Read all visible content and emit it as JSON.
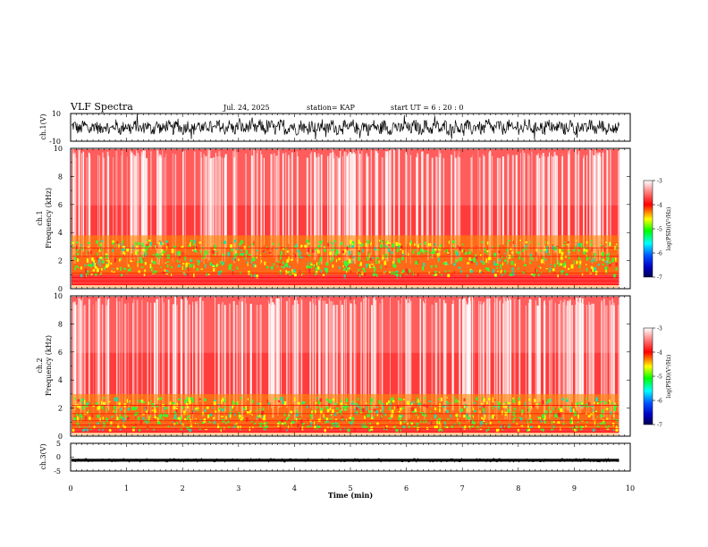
{
  "header": {
    "title": "VLF Spectra",
    "date": "Jul. 24, 2025",
    "station": "station= KAP",
    "start": "start UT =  6 : 20 : 0"
  },
  "chart_data": [
    {
      "type": "line",
      "name": "ch1-waveform",
      "ylabel": "ch.1(V)",
      "ylim": [
        -10,
        10
      ],
      "yticks": [
        "10",
        "-10"
      ],
      "xlim": [
        0,
        10
      ],
      "summary": "continuous noisy waveform roughly between -6 and +6 V, ending near 9.8 min"
    },
    {
      "type": "heatmap",
      "name": "ch1-spectrogram",
      "ylabel": "ch.1\nFrequency (kHz)",
      "ylim": [
        0,
        10
      ],
      "yticks": [
        "0",
        "2",
        "4",
        "6",
        "8",
        "10"
      ],
      "xlim": [
        0,
        10
      ],
      "data_end_min": 9.8,
      "summary": "red background above ~4 kHz, green/yellow band 1-3.5 kHz, white vertical streaks",
      "colorbar": {
        "label": "log(PSD)(V²/Hz)",
        "range": [
          -7,
          -3
        ],
        "ticks": [
          "-3",
          "-4",
          "-5",
          "-6",
          "-7"
        ],
        "colors": [
          "#ffffff",
          "#ff0000",
          "#ffff00",
          "#00ff00",
          "#00aaff",
          "#0000ff",
          "#000060"
        ]
      }
    },
    {
      "type": "heatmap",
      "name": "ch2-spectrogram",
      "ylabel": "ch.2\nFrequency (kHz)",
      "ylim": [
        0,
        10
      ],
      "yticks": [
        "0",
        "2",
        "4",
        "6",
        "8",
        "10"
      ],
      "xlim": [
        0,
        10
      ],
      "data_end_min": 9.8,
      "summary": "red background above ~3 kHz, green/yellow band 0.5-2.8 kHz, white vertical streaks",
      "colorbar": {
        "label": "log(PSD)(V²/Hz)",
        "range": [
          -7,
          -3
        ],
        "ticks": [
          "-3",
          "-4",
          "-5",
          "-6",
          "-7"
        ],
        "colors": [
          "#ffffff",
          "#ff0000",
          "#ffff00",
          "#00ff00",
          "#00aaff",
          "#0000ff",
          "#000060"
        ]
      }
    },
    {
      "type": "line",
      "name": "ch3-waveform",
      "ylabel": "ch.3(V)",
      "ylim": [
        -5,
        5
      ],
      "yticks": [
        "5",
        "0",
        "-5"
      ],
      "xlim": [
        0,
        10
      ],
      "xticks": [
        "0",
        "1",
        "2",
        "3",
        "4",
        "5",
        "6",
        "7",
        "8",
        "9",
        "10"
      ],
      "xlabel": "Time (min)",
      "summary": "thick flat black band near -1 V from 0 to ~9.8 min"
    }
  ]
}
